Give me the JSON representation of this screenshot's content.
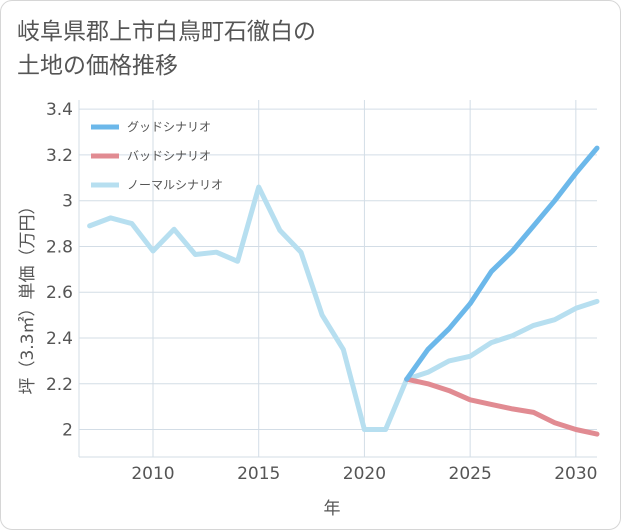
{
  "title_lines": [
    "岐阜県郡上市白鳥町石徹白の",
    "土地の価格推移"
  ],
  "chart_data": {
    "type": "line",
    "title": "岐阜県郡上市白鳥町石徹白の土地の価格推移",
    "xlabel": "年",
    "ylabel": "坪（3.3㎡）単価（万円）",
    "xlim": [
      2006.5,
      2031
    ],
    "ylim": [
      1.88,
      3.44
    ],
    "x_ticks": [
      2010,
      2015,
      2020,
      2025,
      2030
    ],
    "y_ticks": [
      2,
      2.2,
      2.4,
      2.6,
      2.8,
      3,
      3.2,
      3.4
    ],
    "x_tick_labels": [
      "2010",
      "2015",
      "2020",
      "2025",
      "2030"
    ],
    "y_tick_labels": [
      "2",
      "2.2",
      "2.4",
      "2.6",
      "2.8",
      "3",
      "3.2",
      "3.4"
    ],
    "legend_position": "top-left",
    "series": [
      {
        "name": "グッドシナリオ",
        "color": "#6cb8ea",
        "x": [
          2022,
          2023,
          2024,
          2025,
          2026,
          2027,
          2028,
          2029,
          2030,
          2031
        ],
        "y": [
          2.22,
          2.35,
          2.44,
          2.55,
          2.69,
          2.78,
          2.89,
          3.0,
          3.12,
          3.23
        ]
      },
      {
        "name": "バッドシナリオ",
        "color": "#e18b92",
        "x": [
          2022,
          2023,
          2024,
          2025,
          2026,
          2027,
          2028,
          2029,
          2030,
          2031
        ],
        "y": [
          2.22,
          2.2,
          2.17,
          2.13,
          2.11,
          2.09,
          2.075,
          2.03,
          2.0,
          1.98
        ]
      },
      {
        "name": "ノーマルシナリオ",
        "color": "#b7dff0",
        "x": [
          2007,
          2008,
          2009,
          2010,
          2011,
          2012,
          2013,
          2014,
          2015,
          2016,
          2017,
          2018,
          2019,
          2020,
          2021,
          2022,
          2023,
          2024,
          2025,
          2026,
          2027,
          2028,
          2029,
          2030,
          2031
        ],
        "y": [
          2.89,
          2.925,
          2.9,
          2.78,
          2.875,
          2.765,
          2.775,
          2.735,
          3.06,
          2.87,
          2.775,
          2.5,
          2.35,
          2.0,
          2.0,
          2.22,
          2.25,
          2.3,
          2.32,
          2.38,
          2.41,
          2.455,
          2.48,
          2.53,
          2.56
        ]
      }
    ]
  }
}
